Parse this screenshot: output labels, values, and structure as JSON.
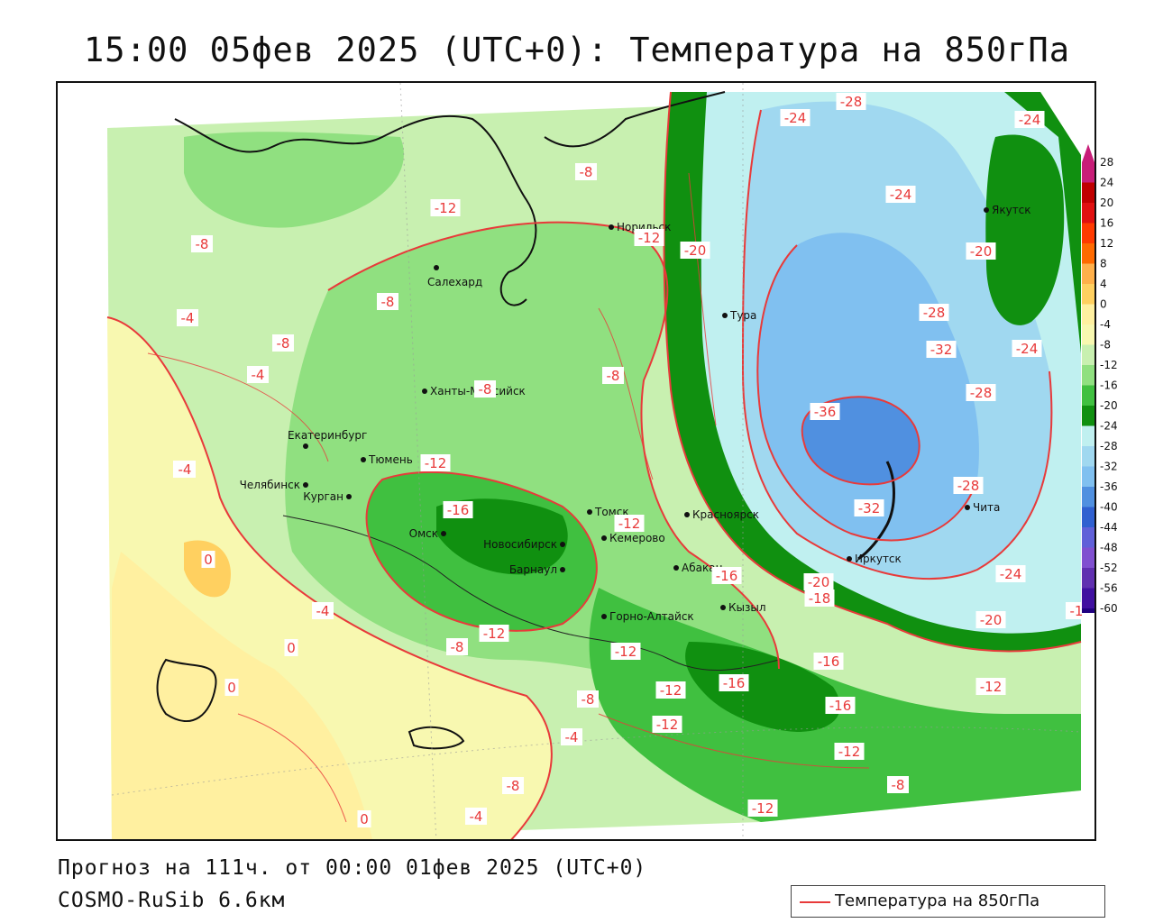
{
  "title": "15:00 05фев 2025 (UTC+0): Температура на 850гПа",
  "forecast_line": "Прогноз на 111ч. от 00:00 01фев 2025 (UTC+0)",
  "model_line": "COSMO-RuSib 6.6км",
  "legend": {
    "label": "Температура на 850гПа",
    "line_color": "#e83a3a"
  },
  "colorbar": {
    "tick_labels": [
      "28",
      "24",
      "20",
      "16",
      "12",
      "8",
      "4",
      "0",
      "-4",
      "-8",
      "-12",
      "-16",
      "-20",
      "-24",
      "-28",
      "-32",
      "-36",
      "-40",
      "-44",
      "-48",
      "-52",
      "-56",
      "-60"
    ],
    "colors": [
      "#c81e78",
      "#c00000",
      "#e01010",
      "#ff3a00",
      "#ff6a00",
      "#ffb04a",
      "#ffd060",
      "#fff0a0",
      "#f8f8b0",
      "#c8f0b0",
      "#90e080",
      "#40c040",
      "#109010",
      "#c0f0f0",
      "#a0d8f0",
      "#80c0f0",
      "#5090e0",
      "#3060d0",
      "#6060d8",
      "#8050d0",
      "#6030b0",
      "#4010a0",
      "#200080"
    ]
  },
  "cities": [
    {
      "name": "Норильск"
    },
    {
      "name": "Салехард"
    },
    {
      "name": "Тура"
    },
    {
      "name": "Якутск"
    },
    {
      "name": "Ханты-Мансийск"
    },
    {
      "name": "Екатеринбург"
    },
    {
      "name": "Тюмень"
    },
    {
      "name": "Челябинск"
    },
    {
      "name": "Курган"
    },
    {
      "name": "Омск"
    },
    {
      "name": "Новосибирск"
    },
    {
      "name": "Томск"
    },
    {
      "name": "Кемерово"
    },
    {
      "name": "Красноярск"
    },
    {
      "name": "Барнаул"
    },
    {
      "name": "Абакан"
    },
    {
      "name": "Кызыл"
    },
    {
      "name": "Горно-Алтайск"
    },
    {
      "name": "Иркутск"
    },
    {
      "name": "Чита"
    }
  ],
  "isotherm_labels": [
    "-8",
    "-12",
    "-8",
    "-8",
    "-4",
    "-8",
    "-4",
    "-8",
    "-12",
    "-8",
    "-8",
    "-12",
    "-16",
    "-12",
    "-16",
    "-12",
    "-20",
    "-24",
    "-28",
    "-24",
    "-24",
    "-20",
    "-28",
    "-32",
    "-24",
    "-28",
    "-36",
    "-28",
    "-32",
    "-24",
    "-20",
    "-20",
    "-18",
    "-16",
    "-16",
    "-16",
    "-12",
    "-12",
    "-12",
    "-8",
    "-4",
    "-8",
    "-4",
    "-12",
    "-12",
    "-8",
    "-12",
    "-4",
    "0",
    "0",
    "0",
    "0",
    "-4",
    "-8",
    "-1"
  ]
}
